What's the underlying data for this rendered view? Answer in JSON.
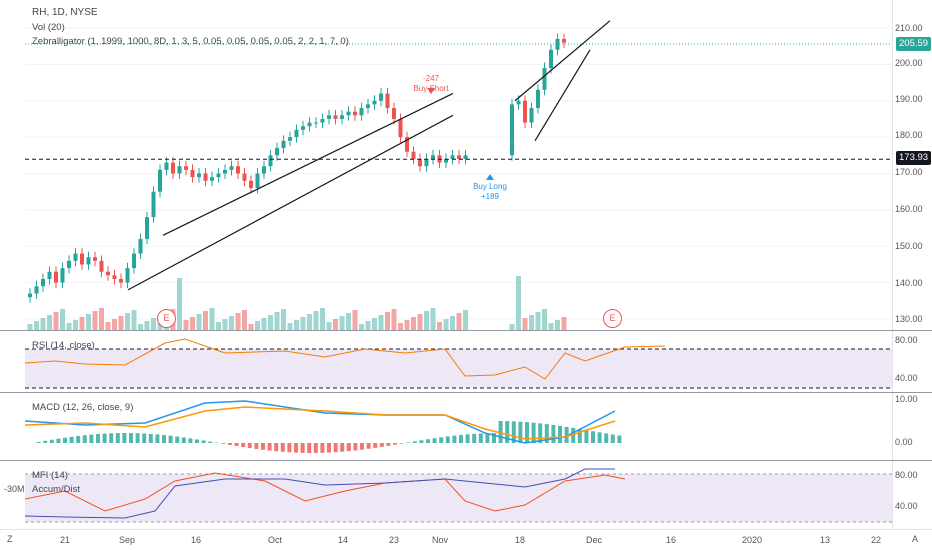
{
  "legend": {
    "symbol": "RH, 1D, NYSE",
    "vol": "Vol (20)",
    "zebralligator": "Zebralligator (1, 1999, 1000, 8D, 1, 3, 5, 0.05, 0.05, 0.05, 0.05, 2, 2, 1, 7, 0)",
    "rsi": "RSI (14, close)",
    "macd": "MACD (12, 26, close, 9)",
    "mfi": "MFI (14)",
    "accum": "Accum/Dist"
  },
  "price_axis": {
    "ticks": [
      "210.00",
      "200.00",
      "190.00",
      "180.00",
      "170.00",
      "160.00",
      "150.00",
      "140.00",
      "130.00"
    ],
    "last_price": "205.59",
    "hline_price": "173.93"
  },
  "rsi_axis": {
    "ticks": [
      "80.00",
      "40.00"
    ]
  },
  "macd_axis": {
    "ticks": [
      "10.00",
      "0.00"
    ]
  },
  "mfi_axis": {
    "ticks": [
      "80.00",
      "40.00"
    ]
  },
  "left_label": "-30M",
  "x_axis": {
    "labels": [
      "21",
      "Sep",
      "16",
      "Oct",
      "14",
      "23",
      "Nov",
      "18",
      "Dec",
      "16",
      "2020",
      "13",
      "22"
    ]
  },
  "annotations": {
    "short_pnl": "-247",
    "short_label": "Buy Short",
    "long_label": "Buy Long",
    "long_pnl": "+189"
  },
  "earnings_marker": "E",
  "corner_left": "Z",
  "corner_right": "A",
  "colors": {
    "up": "#26a69a",
    "down": "#ef5350",
    "last": "#26a69a",
    "rsi": "#f57c00",
    "macd": "#2196f3",
    "signal": "#ff9800",
    "mfi": "#f4511e",
    "accum": "#3f51b5",
    "band": "#ede7f6"
  }
}
